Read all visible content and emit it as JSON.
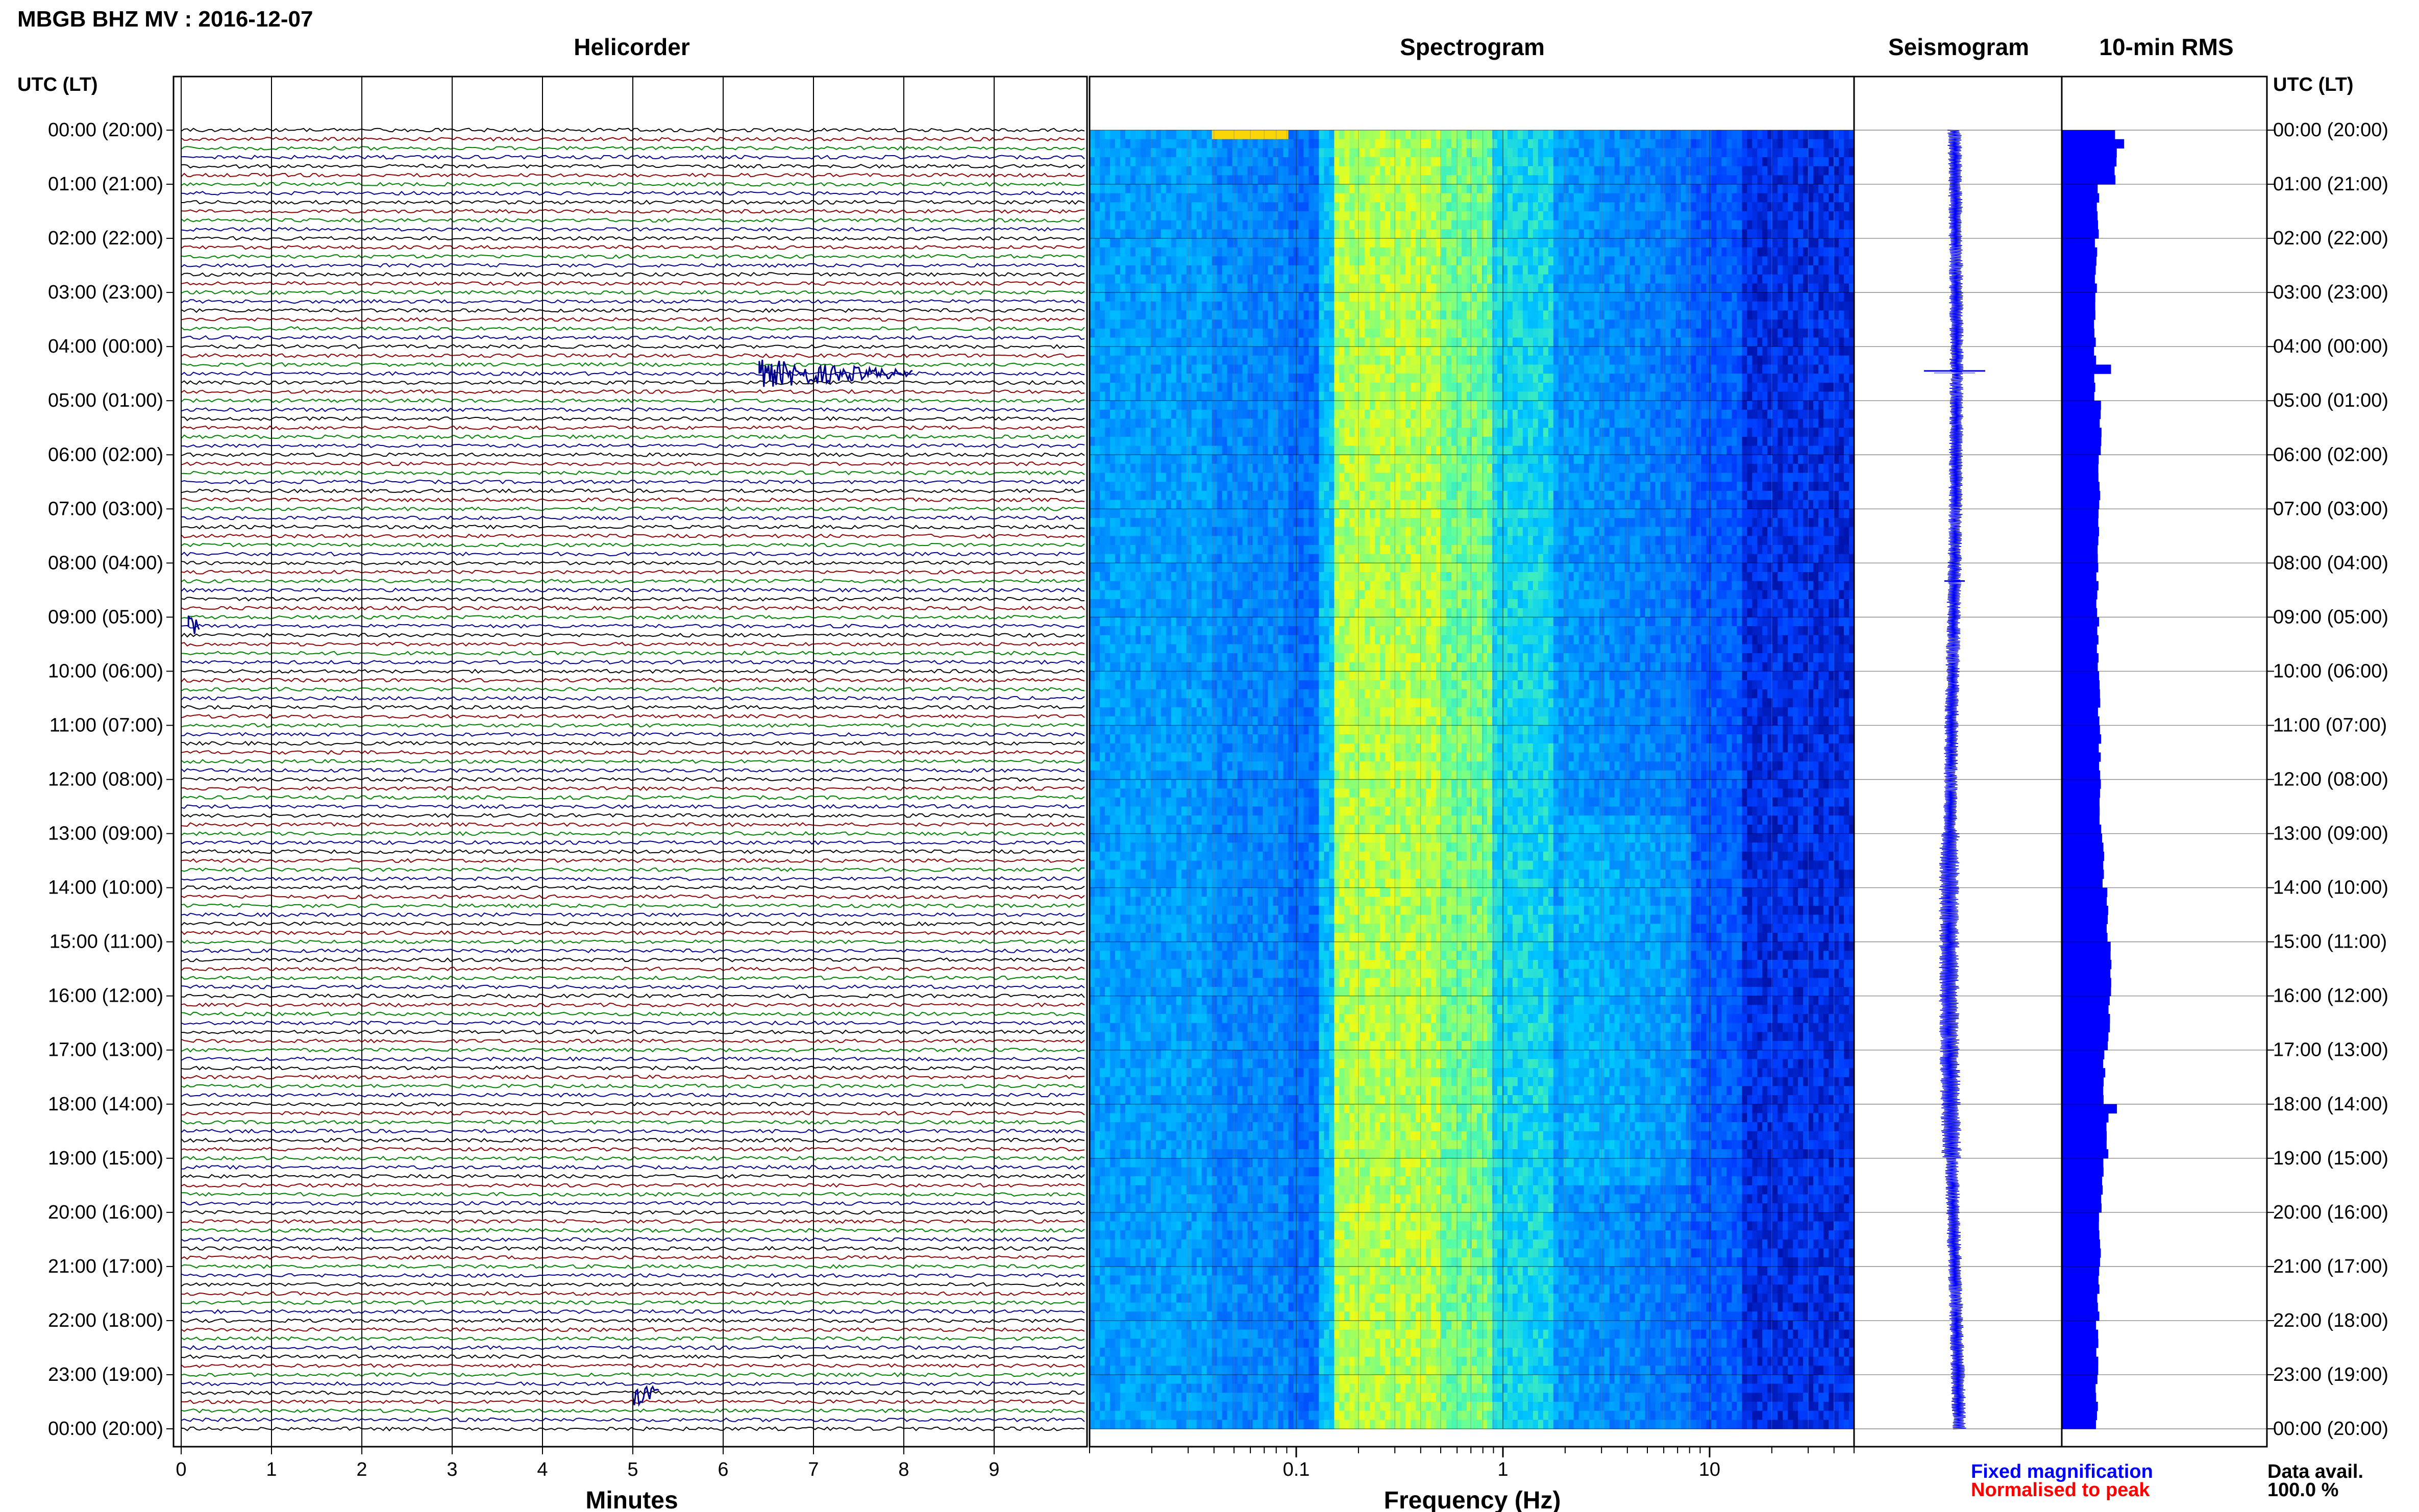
{
  "header": {
    "title": "MBGB BHZ MV : 2016-12-07",
    "left_axis_label": "UTC (LT)",
    "right_axis_label": "UTC (LT)"
  },
  "panels": {
    "helicorder": {
      "title": "Helicorder",
      "xlabel": "Minutes"
    },
    "spectrogram": {
      "title": "Spectrogram",
      "xlabel": "Frequency (Hz)"
    },
    "seismogram": {
      "title": "Seismogram"
    },
    "rms": {
      "title": "10-min RMS"
    }
  },
  "legend": {
    "fixed": "Fixed magnification",
    "normalised": "Normalised to peak",
    "fixed_color": "#0000ff",
    "normalised_color": "#ff0000"
  },
  "data_availability": {
    "label": "Data avail.",
    "value": "100.0 %"
  },
  "chart_data": [
    {
      "type": "line",
      "panel": "helicorder",
      "title": "Helicorder",
      "xlabel": "Minutes",
      "x_ticks": [
        "0",
        "1",
        "2",
        "3",
        "4",
        "5",
        "6",
        "7",
        "8",
        "9"
      ],
      "xlim": [
        0,
        10
      ],
      "rows_per_hour": 6,
      "row_minutes": 10,
      "trace_colors": [
        "#000000",
        "#8b0000",
        "#008000",
        "#00008b"
      ],
      "grid": true,
      "events": [
        {
          "row": 27,
          "start_min": 6.4,
          "end_min": 8.1,
          "color": "#00008b"
        },
        {
          "row": 55,
          "start_min": 0.08,
          "end_min": 0.2,
          "color": "#00008b"
        },
        {
          "row": 140,
          "start_min": 5.0,
          "end_min": 5.3,
          "color": "#00008b"
        }
      ]
    },
    {
      "type": "heatmap",
      "panel": "spectrogram",
      "title": "Spectrogram",
      "xlabel": "Frequency (Hz)",
      "x_scale": "log",
      "xlim": [
        0.01,
        50
      ],
      "x_ticks": [
        "0.1",
        "1",
        "10"
      ],
      "colormap": "jet",
      "grid": true
    },
    {
      "type": "line",
      "panel": "seismogram",
      "title": "Seismogram",
      "events": [
        {
          "time_utc": "04:27",
          "amplitude": "large"
        },
        {
          "time_utc": "08:20",
          "amplitude": "small"
        }
      ],
      "grid": true
    },
    {
      "type": "bar",
      "panel": "rms",
      "title": "10-min RMS",
      "orientation": "horizontal",
      "hours": [
        "00",
        "01",
        "02",
        "03",
        "04",
        "05",
        "06",
        "07",
        "08",
        "09",
        "10",
        "11",
        "12",
        "13",
        "14",
        "15",
        "16",
        "17",
        "18",
        "19",
        "20",
        "21",
        "22",
        "23"
      ],
      "values": [
        0.82,
        0.55,
        0.52,
        0.5,
        0.51,
        0.59,
        0.57,
        0.56,
        0.54,
        0.55,
        0.57,
        0.58,
        0.59,
        0.63,
        0.7,
        0.75,
        0.72,
        0.65,
        0.7,
        0.62,
        0.58,
        0.56,
        0.54,
        0.53
      ],
      "peak_events": [
        {
          "time_utc": "00:10",
          "value": 0.95
        },
        {
          "time_utc": "04:25",
          "value": 0.75
        },
        {
          "time_utc": "18:00",
          "value": 0.84
        }
      ],
      "color": "#0000ff",
      "grid": true
    }
  ],
  "time_labels": [
    "00:00 (20:00)",
    "01:00 (21:00)",
    "02:00 (22:00)",
    "03:00 (23:00)",
    "04:00 (00:00)",
    "05:00 (01:00)",
    "06:00 (02:00)",
    "07:00 (03:00)",
    "08:00 (04:00)",
    "09:00 (05:00)",
    "10:00 (06:00)",
    "11:00 (07:00)",
    "12:00 (08:00)",
    "13:00 (09:00)",
    "14:00 (10:00)",
    "15:00 (11:00)",
    "16:00 (12:00)",
    "17:00 (13:00)",
    "18:00 (14:00)",
    "19:00 (15:00)",
    "20:00 (16:00)",
    "21:00 (17:00)",
    "22:00 (18:00)",
    "23:00 (19:00)",
    "00:00 (20:00)"
  ]
}
